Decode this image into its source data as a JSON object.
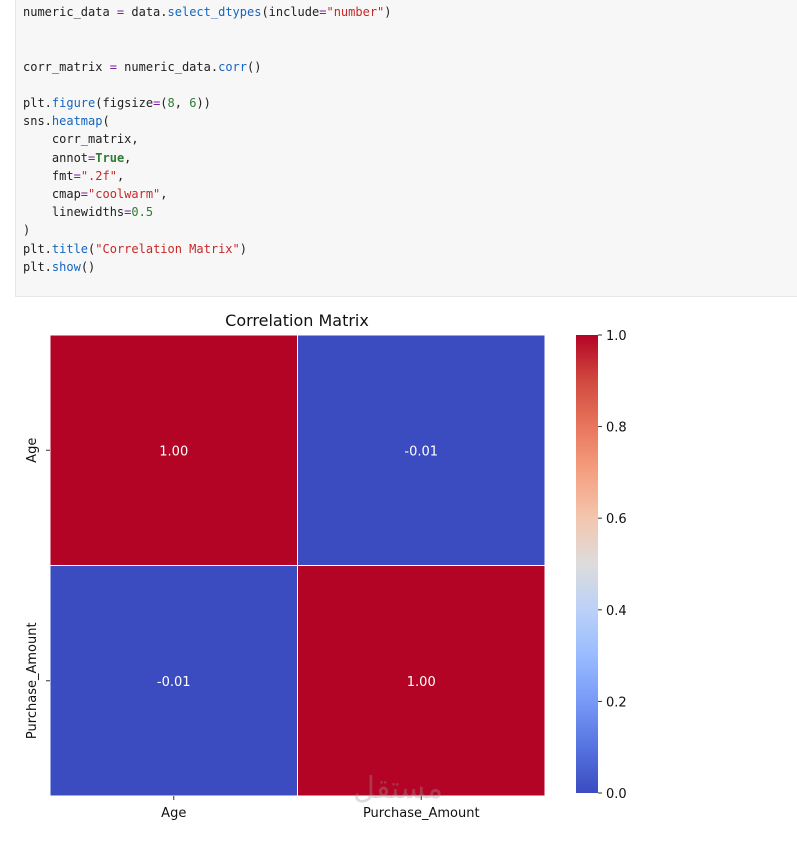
{
  "code": {
    "lines": [
      [
        {
          "t": "numeric_data "
        },
        {
          "t": "=",
          "c": "op"
        },
        {
          "t": " data."
        },
        {
          "t": "select_dtypes",
          "c": "fn"
        },
        {
          "t": "(include"
        },
        {
          "t": "=",
          "c": "op"
        },
        {
          "t": "\"number\"",
          "c": "str"
        },
        {
          "t": ")"
        }
      ],
      [],
      [],
      [
        {
          "t": "corr_matrix "
        },
        {
          "t": "=",
          "c": "op"
        },
        {
          "t": " numeric_data."
        },
        {
          "t": "corr",
          "c": "fn"
        },
        {
          "t": "()"
        }
      ],
      [],
      [
        {
          "t": "plt."
        },
        {
          "t": "figure",
          "c": "fn"
        },
        {
          "t": "(figsize"
        },
        {
          "t": "=",
          "c": "op"
        },
        {
          "t": "("
        },
        {
          "t": "8",
          "c": "num"
        },
        {
          "t": ", "
        },
        {
          "t": "6",
          "c": "num"
        },
        {
          "t": "))"
        }
      ],
      [
        {
          "t": "sns."
        },
        {
          "t": "heatmap",
          "c": "fn"
        },
        {
          "t": "("
        }
      ],
      [
        {
          "t": "    corr_matrix,"
        }
      ],
      [
        {
          "t": "    annot"
        },
        {
          "t": "=",
          "c": "op"
        },
        {
          "t": "True",
          "c": "kw"
        },
        {
          "t": ","
        }
      ],
      [
        {
          "t": "    fmt"
        },
        {
          "t": "=",
          "c": "op"
        },
        {
          "t": "\".2f\"",
          "c": "str"
        },
        {
          "t": ","
        }
      ],
      [
        {
          "t": "    cmap"
        },
        {
          "t": "=",
          "c": "op"
        },
        {
          "t": "\"coolwarm\"",
          "c": "str"
        },
        {
          "t": ","
        }
      ],
      [
        {
          "t": "    linewidths"
        },
        {
          "t": "=",
          "c": "op"
        },
        {
          "t": "0.5",
          "c": "num"
        }
      ],
      [
        {
          "t": ")"
        }
      ],
      [
        {
          "t": "plt."
        },
        {
          "t": "title",
          "c": "fn"
        },
        {
          "t": "("
        },
        {
          "t": "\"Correlation Matrix\"",
          "c": "str"
        },
        {
          "t": ")"
        }
      ],
      [
        {
          "t": "plt."
        },
        {
          "t": "show",
          "c": "fn"
        },
        {
          "t": "()"
        }
      ]
    ]
  },
  "chart_data": {
    "type": "heatmap",
    "title": "Correlation Matrix",
    "row_labels": [
      "Age",
      "Purchase_Amount"
    ],
    "col_labels": [
      "Age",
      "Purchase_Amount"
    ],
    "values": [
      [
        1.0,
        -0.01
      ],
      [
        -0.01,
        1.0
      ]
    ],
    "annotations": [
      [
        "1.00",
        "-0.01"
      ],
      [
        "-0.01",
        "1.00"
      ]
    ],
    "cmap": "coolwarm",
    "colorbar": {
      "vmin": 0.0,
      "vmax": 1.0,
      "ticks": [
        0.0,
        0.2,
        0.4,
        0.6,
        0.8,
        1.0
      ],
      "tick_labels": [
        "0.0",
        "0.2",
        "0.4",
        "0.6",
        "0.8",
        "1.0"
      ]
    },
    "colors": {
      "high": "#b40426",
      "low": "#3b4cc0"
    }
  },
  "watermark": "مستقل"
}
